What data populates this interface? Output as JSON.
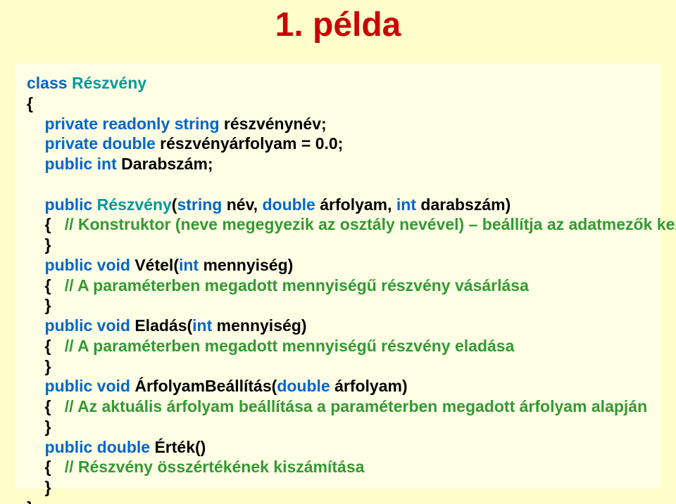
{
  "title": "1. példa",
  "colors": {
    "slide_bg": "#ffffcc",
    "box_bg": "#ffffe5",
    "title_color": "#cc0000",
    "keyword": "#0066cc",
    "type": "#009999",
    "comment": "#339933",
    "text": "#000000"
  },
  "typography": {
    "title_fontsize": 48,
    "title_weight": "bold",
    "code_fontsize": 23,
    "code_line_height": 1.25,
    "font_family": "Arial Narrow"
  },
  "code": {
    "l01_kw_class": "class",
    "l01_type": " Részvény",
    "l02": "{",
    "l03_kw": "    private readonly string",
    "l03_txt": " részvénynév;",
    "l04_kw": "    private double",
    "l04_txt": " részvényárfolyam = 0.0;",
    "l05_kw": "    public int",
    "l05_txt": " Darabszám;",
    "l06": " ",
    "l07_kw1": "    public",
    "l07_type": " Részvény",
    "l07_paren": "(",
    "l07_kw2": "string",
    "l07_p1": " név, ",
    "l07_kw3": "double",
    "l07_p2": " árfolyam, ",
    "l07_kw4": "int",
    "l07_p3": " darabszám)",
    "l08_open": "    {   ",
    "l08_cmt": "// Konstruktor (neve megegyezik az osztály nevével) – beállítja az adatmezők kezdeti értékét",
    "l09": "    }",
    "l10_kw": "    public void",
    "l10_txt": " Vétel(",
    "l10_kw2": "int",
    "l10_txt2": " mennyiség)",
    "l11_open": "    {   ",
    "l11_cmt": "// A paraméterben megadott mennyiségű részvény vásárlása",
    "l12": "    }",
    "l13_kw": "    public void",
    "l13_txt": " Eladás(",
    "l13_kw2": "int",
    "l13_txt2": " mennyiség)",
    "l14_open": "    {   ",
    "l14_cmt": "// A paraméterben megadott mennyiségű részvény eladása",
    "l15": "    }",
    "l16_kw": "    public void",
    "l16_txt": " ÁrfolyamBeállítás(",
    "l16_kw2": "double",
    "l16_txt2": " árfolyam)",
    "l17_open": "    {   ",
    "l17_cmt": "// Az aktuális árfolyam beállítása a paraméterben megadott árfolyam alapján",
    "l18": "    }",
    "l19_kw": "    public double",
    "l19_txt": " Érték()",
    "l20_open": "    {   ",
    "l20_cmt": "// Részvény összértékének kiszámítása",
    "l21": "    }",
    "l22": "}"
  }
}
